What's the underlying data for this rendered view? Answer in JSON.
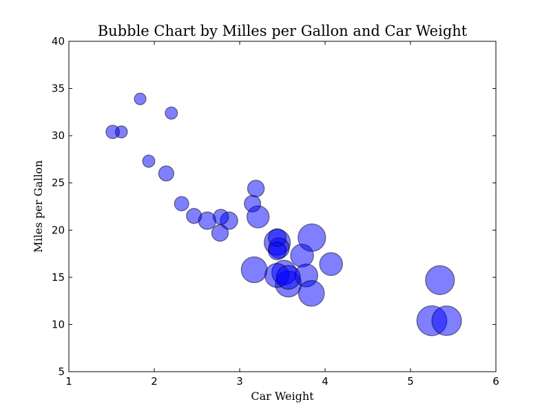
{
  "chart_data": {
    "type": "scatter",
    "title": "Bubble Chart by Milles per Gallon and  Car Weight",
    "xlabel": "Car Weight",
    "ylabel": "Miles per Gallon",
    "xlim": [
      1,
      6
    ],
    "ylim": [
      5,
      40
    ],
    "xticks": [
      1,
      2,
      3,
      4,
      5,
      6
    ],
    "yticks": [
      5,
      10,
      15,
      20,
      25,
      30,
      35,
      40
    ],
    "grid": false,
    "bubble_color": "#0000ff",
    "points": [
      {
        "x": 2.62,
        "y": 21.0,
        "size": 160
      },
      {
        "x": 2.875,
        "y": 21.0,
        "size": 160
      },
      {
        "x": 2.32,
        "y": 22.8,
        "size": 108
      },
      {
        "x": 3.215,
        "y": 21.4,
        "size": 258
      },
      {
        "x": 3.44,
        "y": 18.7,
        "size": 360
      },
      {
        "x": 3.46,
        "y": 18.1,
        "size": 225
      },
      {
        "x": 3.57,
        "y": 14.3,
        "size": 360
      },
      {
        "x": 3.19,
        "y": 24.4,
        "size": 147
      },
      {
        "x": 3.15,
        "y": 22.8,
        "size": 141
      },
      {
        "x": 3.44,
        "y": 19.2,
        "size": 168
      },
      {
        "x": 3.44,
        "y": 17.8,
        "size": 168
      },
      {
        "x": 4.07,
        "y": 16.4,
        "size": 276
      },
      {
        "x": 3.73,
        "y": 17.3,
        "size": 276
      },
      {
        "x": 3.78,
        "y": 15.2,
        "size": 276
      },
      {
        "x": 5.25,
        "y": 10.4,
        "size": 472
      },
      {
        "x": 5.424,
        "y": 10.4,
        "size": 460
      },
      {
        "x": 5.345,
        "y": 14.7,
        "size": 440
      },
      {
        "x": 2.2,
        "y": 32.4,
        "size": 79
      },
      {
        "x": 1.615,
        "y": 30.4,
        "size": 76
      },
      {
        "x": 1.835,
        "y": 33.9,
        "size": 71
      },
      {
        "x": 2.465,
        "y": 21.5,
        "size": 120
      },
      {
        "x": 3.52,
        "y": 15.5,
        "size": 318
      },
      {
        "x": 3.435,
        "y": 15.2,
        "size": 304
      },
      {
        "x": 3.84,
        "y": 13.3,
        "size": 350
      },
      {
        "x": 3.845,
        "y": 19.2,
        "size": 400
      },
      {
        "x": 1.935,
        "y": 27.3,
        "size": 79
      },
      {
        "x": 2.14,
        "y": 26.0,
        "size": 120
      },
      {
        "x": 1.513,
        "y": 30.4,
        "size": 95
      },
      {
        "x": 3.17,
        "y": 15.8,
        "size": 351
      },
      {
        "x": 2.77,
        "y": 19.7,
        "size": 145
      },
      {
        "x": 3.57,
        "y": 15.0,
        "size": 301
      },
      {
        "x": 2.78,
        "y": 21.4,
        "size": 121
      }
    ]
  }
}
